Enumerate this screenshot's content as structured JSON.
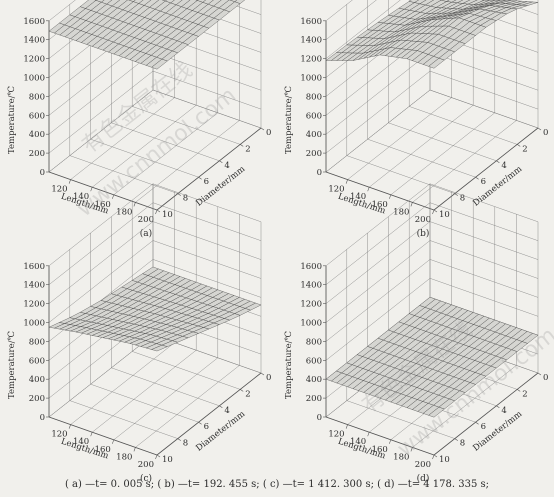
{
  "chart_data": [
    {
      "type": "surface",
      "panel_label": "(a)",
      "xlabel": "Length/mm",
      "ylabel": "Diameter/mm",
      "zlabel": "Temperature/℃",
      "x_ticks": [
        "120",
        "140",
        "160",
        "180",
        "200"
      ],
      "y_ticks": [
        "0",
        "2",
        "4",
        "6",
        "8",
        "10"
      ],
      "z_ticks": [
        "0",
        "200",
        "400",
        "600",
        "800",
        "1000",
        "1200",
        "1400",
        "1600"
      ],
      "xlim": [
        100,
        200
      ],
      "ylim": [
        0,
        10
      ],
      "zlim": [
        0,
        1600
      ],
      "surface": {
        "length": [
          100,
          200
        ],
        "diameter": [
          0,
          10
        ],
        "temperature": [
          [
            1490,
            1490
          ],
          [
            1490,
            1490
          ]
        ]
      }
    },
    {
      "type": "surface",
      "panel_label": "(b)",
      "xlabel": "Length/mm",
      "ylabel": "Diameter/mm",
      "zlabel": "Temperature/℃",
      "x_ticks": [
        "120",
        "140",
        "160",
        "180",
        "200"
      ],
      "y_ticks": [
        "0",
        "2",
        "4",
        "6",
        "8",
        "10"
      ],
      "z_ticks": [
        "0",
        "200",
        "400",
        "600",
        "800",
        "1000",
        "1200",
        "1400",
        "1600"
      ],
      "xlim": [
        100,
        200
      ],
      "ylim": [
        0,
        10
      ],
      "zlim": [
        0,
        1600
      ],
      "surface": {
        "length": [
          100,
          125,
          150,
          175,
          200
        ],
        "diameter": [
          0,
          2.5,
          5,
          7.5,
          10
        ],
        "temperature": [
          [
            1080,
            1100,
            1150,
            1250,
            1330
          ],
          [
            1120,
            1160,
            1250,
            1400,
            1460
          ],
          [
            1150,
            1220,
            1380,
            1500,
            1500
          ],
          [
            1170,
            1260,
            1420,
            1500,
            1500
          ],
          [
            1180,
            1280,
            1440,
            1500,
            1500
          ]
        ]
      }
    },
    {
      "type": "surface",
      "panel_label": "(c)",
      "xlabel": "Length/mm",
      "ylabel": "Diameter/mm",
      "zlabel": "Temperature/℃",
      "x_ticks": [
        "120",
        "140",
        "160",
        "180",
        "200"
      ],
      "y_ticks": [
        "0",
        "2",
        "4",
        "6",
        "8",
        "10"
      ],
      "z_ticks": [
        "0",
        "200",
        "400",
        "600",
        "800",
        "1000",
        "1200",
        "1400",
        "1600"
      ],
      "xlim": [
        100,
        200
      ],
      "ylim": [
        0,
        10
      ],
      "zlim": [
        0,
        1600
      ],
      "surface": {
        "length": [
          100,
          125,
          150,
          175,
          200
        ],
        "diameter": [
          0,
          2.5,
          5,
          7.5,
          10
        ],
        "temperature": [
          [
            720,
            720,
            720,
            720,
            720
          ],
          [
            760,
            770,
            780,
            790,
            800
          ],
          [
            800,
            830,
            860,
            880,
            900
          ],
          [
            860,
            900,
            940,
            980,
            1000
          ],
          [
            950,
            1000,
            1040,
            1080,
            1100
          ]
        ]
      }
    },
    {
      "type": "surface",
      "panel_label": "(d)",
      "xlabel": "Length/mm",
      "ylabel": "Diameter/mm",
      "zlabel": "Temperature/℃",
      "x_ticks": [
        "120",
        "140",
        "160",
        "180",
        "200"
      ],
      "y_ticks": [
        "0",
        "2",
        "4",
        "6",
        "8",
        "10"
      ],
      "z_ticks": [
        "0",
        "200",
        "400",
        "600",
        "800",
        "1000",
        "1200",
        "1400",
        "1600"
      ],
      "xlim": [
        100,
        200
      ],
      "ylim": [
        0,
        10
      ],
      "zlim": [
        0,
        1600
      ],
      "surface": {
        "length": [
          100,
          200
        ],
        "diameter": [
          0,
          10
        ],
        "temperature": [
          [
            400,
            400
          ],
          [
            400,
            400
          ]
        ]
      }
    }
  ],
  "caption": "( a) —t= 0. 005 s;  ( b) —t= 192. 455 s;  ( c) —t= 1 412. 300 s;  ( d) —t= 4 178. 335 s;",
  "watermarks": [
    "有色金属在线",
    "www.cnnmol.com",
    "有色金属在线",
    "www.cnnmol.com"
  ],
  "colors": {
    "background": "#f1f0ec",
    "axis": "#555555",
    "mesh": "#3a3a3a",
    "surface_fill": "#d6d6d2"
  }
}
